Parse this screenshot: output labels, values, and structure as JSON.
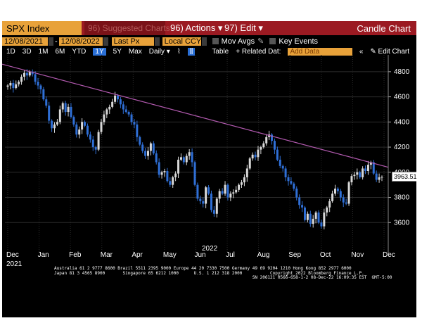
{
  "header": {
    "ticker": "SPX Index",
    "suggested": "96) Suggested Charts",
    "actions": "96) Actions ▾",
    "edit": "97) Edit ▾",
    "title": "Candle Chart"
  },
  "controls": {
    "start_date": "12/08/2021",
    "end_date": "12/08/2022",
    "field": "Last Px",
    "currency": "Local CCY",
    "mov_avgs": "Mov Avgs",
    "key_events": "Key Events"
  },
  "toolbar": {
    "periods": [
      "1D",
      "3D",
      "1M",
      "6M",
      "YTD",
      "1Y",
      "5Y",
      "Max"
    ],
    "selected_period": "1Y",
    "frequency": "Daily ▾",
    "table": "Table",
    "related": "+ Related Dat:",
    "add_data_placeholder": "Add Data",
    "edit_chart": "✎ Edit Chart"
  },
  "chart_data": {
    "type": "candlestick",
    "ylim": [
      3400,
      4900
    ],
    "yticks": [
      3600,
      3800,
      4000,
      4200,
      4400,
      4600,
      4800
    ],
    "x_month_labels": [
      "Dec",
      "Jan",
      "Feb",
      "Mar",
      "Apr",
      "May",
      "Jun",
      "Jul",
      "Aug",
      "Sep",
      "Oct",
      "Nov",
      "Dec"
    ],
    "year_labels": [
      "2021",
      "2022"
    ],
    "last_price": "3963.51",
    "close_series": [
      4690,
      4710,
      4670,
      4700,
      4720,
      4760,
      4790,
      4770,
      4800,
      4780,
      4720,
      4690,
      4660,
      4580,
      4530,
      4410,
      4350,
      4380,
      4400,
      4500,
      4550,
      4480,
      4520,
      4440,
      4380,
      4300,
      4340,
      4400,
      4370,
      4300,
      4260,
      4200,
      4180,
      4320,
      4400,
      4460,
      4500,
      4520,
      4560,
      4610,
      4580,
      4540,
      4500,
      4480,
      4460,
      4400,
      4380,
      4280,
      4220,
      4170,
      4130,
      4170,
      4230,
      4150,
      4080,
      3980,
      4000,
      4010,
      3930,
      3900,
      3960,
      3990,
      4100,
      4120,
      4080,
      4130,
      4160,
      4080,
      3900,
      3790,
      3770,
      3750,
      3880,
      3830,
      3700,
      3670,
      3790,
      3850,
      3830,
      3900,
      3800,
      3830,
      3840,
      3860,
      3900,
      3920,
      3960,
      4030,
      4110,
      4140,
      4120,
      4180,
      4200,
      4230,
      4280,
      4300,
      4250,
      4180,
      4100,
      4050,
      4030,
      3960,
      3930,
      3910,
      3870,
      3800,
      3740,
      3720,
      3620,
      3670,
      3590,
      3630,
      3680,
      3600,
      3570,
      3680,
      3720,
      3770,
      3830,
      3870,
      3850,
      3800,
      3760,
      3750,
      3920,
      3970,
      3980,
      4000,
      3960,
      4030,
      4010,
      4060,
      4080,
      3990,
      3940,
      3960,
      3963
    ]
  },
  "footer": {
    "lines": [
      "Australia 61 2 9777 8600 Brazil 5511 2395 9000 Europe 44 20 7330 7500 Germany 49 69 9204 1210 Hong Kong 852 2977 6000",
      "Japan 81 3 4565 8900       Singapore 65 6212 1000      U.S. 1 212 318 2000           Copyright 2022 Bloomberg Finance L.P.",
      "                                                                              SN 206121 H566-658-1-2 08-Dec-22 16:09:35 EST  GMT-5:00"
    ]
  },
  "colors": {
    "up": "#d8d8d8",
    "down": "#2f6fd6",
    "trendline": "#b35ab0",
    "header_red": "#9b1a22",
    "amber": "#e8a23a"
  }
}
